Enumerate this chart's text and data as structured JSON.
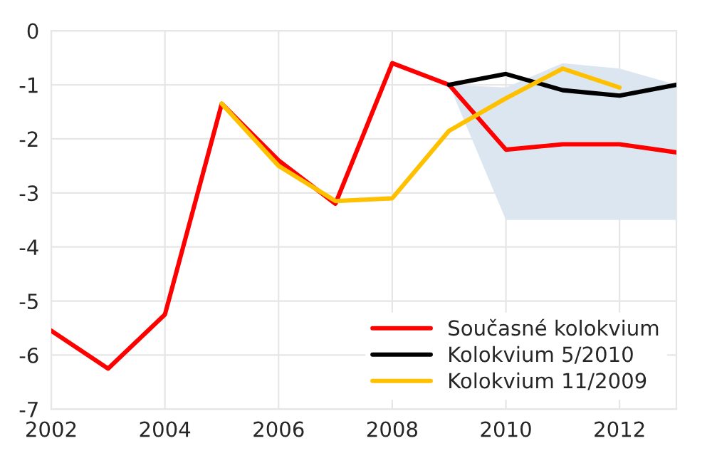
{
  "chart_data": {
    "type": "line",
    "xlim": [
      2002,
      2013
    ],
    "xticks": [
      2002,
      2004,
      2006,
      2008,
      2010,
      2012
    ],
    "ylim": [
      -7,
      0
    ],
    "yticks": [
      -7,
      -6,
      -5,
      -4,
      -3,
      -2,
      -1,
      0
    ],
    "grid": true,
    "legend": "bottom right",
    "marker": "none",
    "line_style": "solid",
    "series": [
      {
        "name": "Současné kolokvium",
        "color": "#ff0000",
        "x": [
          2002,
          2003,
          2004,
          2005,
          2006,
          2007,
          2008,
          2009,
          2010,
          2011,
          2012,
          2013
        ],
        "values": [
          -5.55,
          -6.25,
          -5.25,
          -1.35,
          -2.4,
          -3.2,
          -0.6,
          -1.0,
          -2.2,
          -2.1,
          -2.1,
          -2.25
        ]
      },
      {
        "name": "Kolokvium 5/2010",
        "color": "#000000",
        "x": [
          2009,
          2010,
          2011,
          2012,
          2013
        ],
        "values": [
          -1.0,
          -0.8,
          -1.1,
          -1.2,
          -1.0
        ],
        "lower": [
          -1.0,
          -3.5,
          -3.5,
          -3.5,
          -3.5
        ],
        "upper": [
          -1.0,
          -1.05,
          -0.6,
          -0.7,
          -1.0
        ]
      },
      {
        "name": "Kolokvium 11/2009",
        "color": "#ffc000",
        "x": [
          2005,
          2006,
          2007,
          2008,
          2009,
          2010,
          2011,
          2012
        ],
        "values": [
          -1.35,
          -2.5,
          -3.15,
          -3.1,
          -1.85,
          -1.25,
          -0.7,
          -1.05
        ]
      }
    ]
  }
}
